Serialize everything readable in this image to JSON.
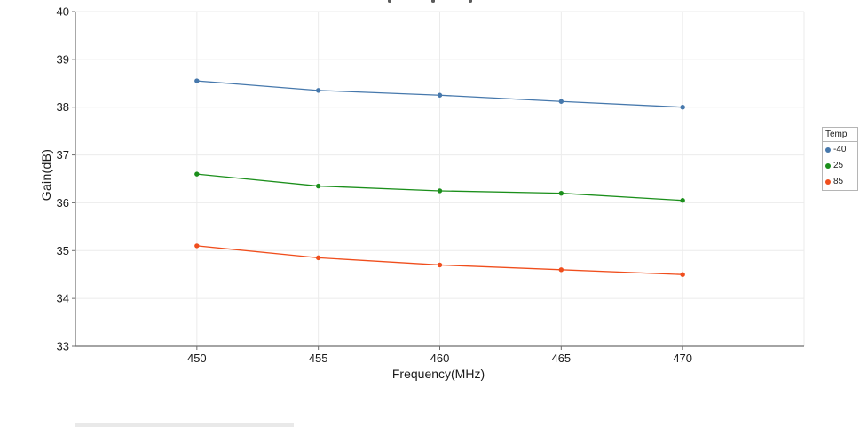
{
  "chart": {
    "plot": {
      "grid_color": "#ebebeb",
      "spine_color": "#6e6e6e",
      "tick_label_color": "#1a1a1a",
      "background": "#ffffff"
    },
    "y_axis": {
      "label": "Gain(dB)",
      "ticks": [
        40,
        39,
        38,
        37,
        36,
        35,
        34,
        33
      ]
    },
    "x_axis": {
      "label": "Frequency(MHz)",
      "ticks": [
        450,
        455,
        460,
        465,
        470
      ]
    }
  },
  "chart_data": {
    "type": "line",
    "title": "",
    "xlabel": "Frequency(MHz)",
    "ylabel": "Gain(dB)",
    "x": [
      450,
      455,
      460,
      465,
      470
    ],
    "series": [
      {
        "name": "-40",
        "color": "#4678ac",
        "values": [
          38.55,
          38.35,
          38.25,
          38.12,
          38.0
        ]
      },
      {
        "name": "25",
        "color": "#1b8f1b",
        "values": [
          36.6,
          36.35,
          36.25,
          36.2,
          36.05
        ]
      },
      {
        "name": "85",
        "color": "#f04e1d",
        "values": [
          35.1,
          34.85,
          34.7,
          34.6,
          34.5
        ]
      }
    ],
    "xlim": [
      445,
      475
    ],
    "ylim": [
      33,
      40
    ],
    "grid": true,
    "marker": "circle",
    "legend_title": "Temp",
    "legend_position": "right-outside"
  }
}
